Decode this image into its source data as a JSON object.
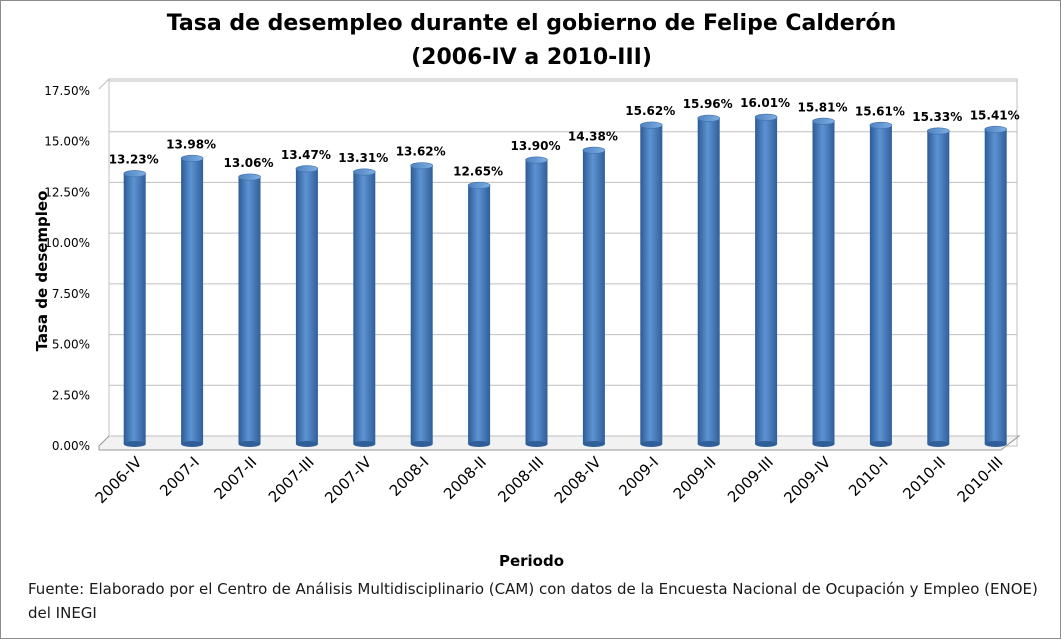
{
  "chart_data": {
    "type": "bar",
    "title_line1": "Tasa de desempleo durante el gobierno de Felipe Calderón",
    "title_line2": "(2006-IV a 2010-III)",
    "xlabel": "Periodo",
    "ylabel": "Tasa de desempleo",
    "ylim": [
      0,
      17.5
    ],
    "yticks": [
      "0.00%",
      "2.50%",
      "5.00%",
      "7.50%",
      "10.00%",
      "12.50%",
      "15.00%",
      "17.50%"
    ],
    "grid": true,
    "legend": "none",
    "categories": [
      "2006-IV",
      "2007-I",
      "2007-II",
      "2007-III",
      "2007-IV",
      "2008-I",
      "2008-II",
      "2008-III",
      "2008-IV",
      "2009-I",
      "2009-II",
      "2009-III",
      "2009-IV",
      "2010-I",
      "2010-II",
      "2010-III"
    ],
    "values": [
      13.23,
      13.98,
      13.06,
      13.47,
      13.31,
      13.62,
      12.65,
      13.9,
      14.38,
      15.62,
      15.96,
      16.01,
      15.81,
      15.61,
      15.33,
      15.41
    ],
    "value_labels": [
      "13.23%",
      "13.98%",
      "13.06%",
      "13.47%",
      "13.31%",
      "13.62%",
      "12.65%",
      "13.90%",
      "14.38%",
      "15.62%",
      "15.96%",
      "16.01%",
      "15.81%",
      "15.61%",
      "15.33%",
      "15.41%"
    ],
    "bar_color": "#4a7ebb",
    "source": "Fuente: Elaborado por el Centro de Análisis Multidisciplinario (CAM) con datos de la Encuesta Nacional de Ocupación y Empleo (ENOE)  del INEGI"
  }
}
